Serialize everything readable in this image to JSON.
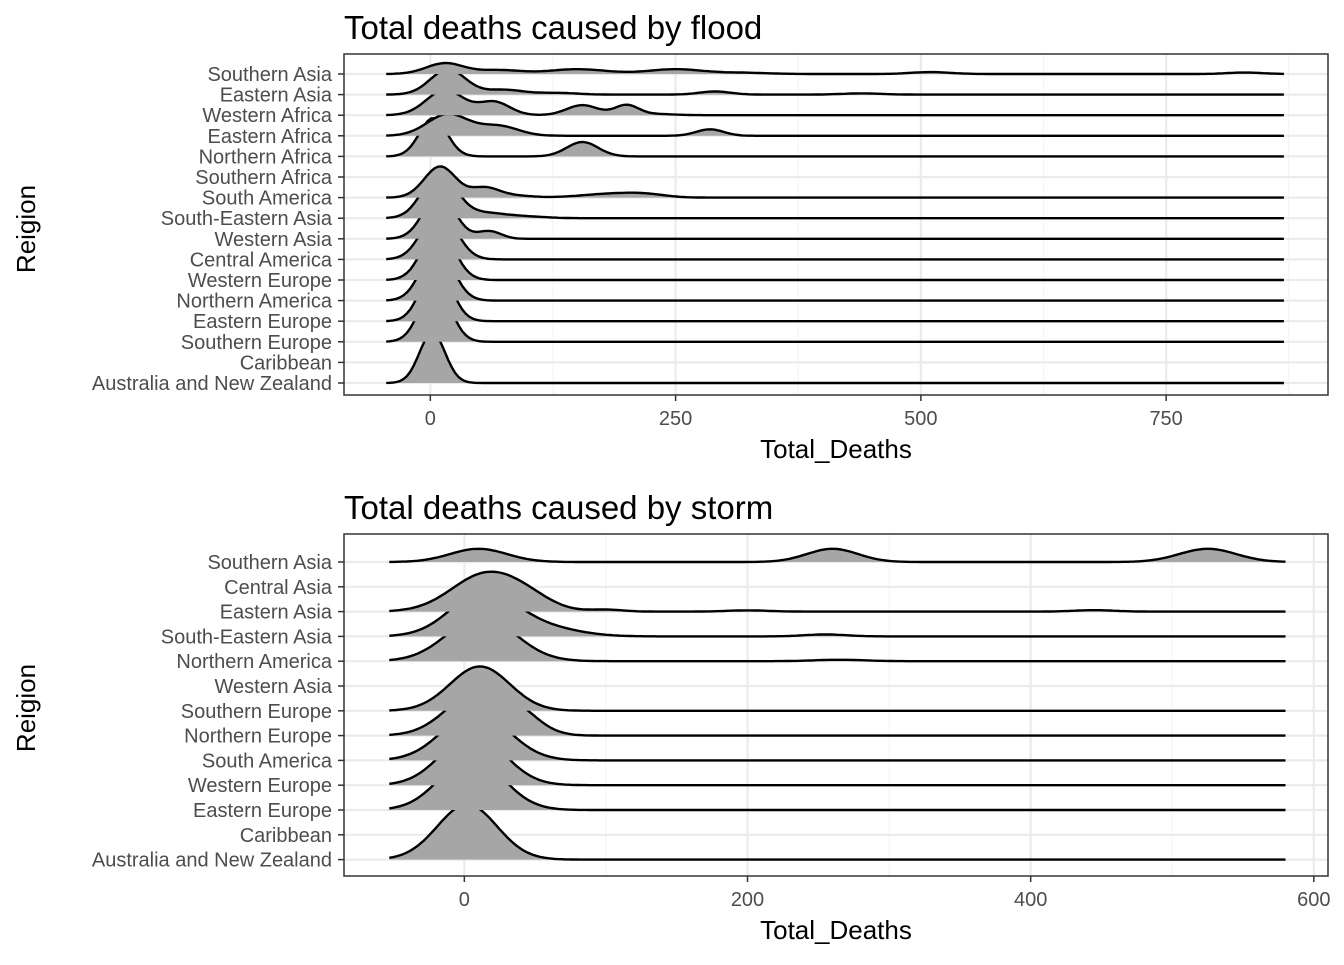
{
  "colors": {
    "fill": "#a6a6a6",
    "line": "#000000",
    "grid_major": "#ebebeb",
    "grid_minor": "#f5f5f5",
    "panel_border": "#333333",
    "tick_text": "#4d4d4d"
  },
  "chart_data": [
    {
      "type": "ridgeline",
      "title": "Total deaths caused by flood",
      "xlabel": "Total_Deaths",
      "ylabel": "Reigion",
      "xlim": [
        -88,
        915
      ],
      "xticks": [
        0,
        250,
        500,
        750
      ],
      "x_range": [
        -45,
        870
      ],
      "grid": true,
      "categories_top_to_bottom": [
        "Southern Asia",
        "Eastern Asia",
        "Western Africa",
        "Eastern Africa",
        "Northern Africa",
        "Southern Africa",
        "South America",
        "South-Eastern Asia",
        "Western Asia",
        "Central America",
        "Western Europe",
        "Northern America",
        "Eastern Europe",
        "Southern Europe",
        "Caribbean",
        "Australia and New Zealand"
      ],
      "series": [
        {
          "name": "Southern Asia",
          "peaks": [
            [
              15,
              0.45,
              19
            ],
            [
              70,
              0.16,
              22
            ],
            [
              150,
              0.2,
              30
            ],
            [
              250,
              0.2,
              28
            ],
            [
              320,
              0.05,
              25
            ],
            [
              510,
              0.08,
              20
            ],
            [
              830,
              0.06,
              18
            ]
          ]
        },
        {
          "name": "Eastern Asia",
          "peaks": [
            [
              18,
              1.05,
              18
            ],
            [
              75,
              0.2,
              20
            ],
            [
              130,
              0.07,
              20
            ],
            [
              290,
              0.13,
              16
            ],
            [
              440,
              0.05,
              20
            ]
          ]
        },
        {
          "name": "Western Africa",
          "peaks": [
            [
              15,
              1.05,
              19
            ],
            [
              65,
              0.55,
              16
            ],
            [
              155,
              0.42,
              16
            ],
            [
              200,
              0.42,
              12
            ],
            [
              230,
              0.05,
              18
            ]
          ]
        },
        {
          "name": "Eastern Africa",
          "peaks": [
            [
              18,
              0.9,
              21
            ],
            [
              70,
              0.4,
              20
            ],
            [
              285,
              0.27,
              14
            ]
          ]
        },
        {
          "name": "Northern Africa",
          "peaks": [
            [
              3,
              1.6,
              14
            ],
            [
              155,
              0.6,
              16
            ]
          ]
        },
        {
          "name": "Southern Africa",
          "peaks": []
        },
        {
          "name": "South America",
          "peaks": [
            [
              10,
              1.3,
              16
            ],
            [
              55,
              0.38,
              14
            ],
            [
              80,
              0.1,
              20
            ],
            [
              185,
              0.16,
              30
            ],
            [
              220,
              0.1,
              20
            ]
          ]
        },
        {
          "name": "South-Eastern Asia",
          "peaks": [
            [
              9,
              1.9,
              17
            ],
            [
              55,
              0.22,
              22
            ],
            [
              100,
              0.06,
              20
            ]
          ]
        },
        {
          "name": "Western Asia",
          "peaks": [
            [
              9,
              1.85,
              16
            ],
            [
              60,
              0.32,
              12
            ]
          ]
        },
        {
          "name": "Central America",
          "peaks": [
            [
              9,
              2.05,
              17
            ]
          ]
        },
        {
          "name": "Western Europe",
          "peaks": [
            [
              8,
              2.15,
              16
            ]
          ]
        },
        {
          "name": "Northern America",
          "peaks": [
            [
              7,
              2.2,
              16
            ]
          ]
        },
        {
          "name": "Eastern Europe",
          "peaks": [
            [
              6,
              2.35,
              15
            ]
          ]
        },
        {
          "name": "Southern Europe",
          "peaks": [
            [
              5,
              2.4,
              15
            ]
          ]
        },
        {
          "name": "Caribbean",
          "peaks": []
        },
        {
          "name": "Australia and New Zealand",
          "peaks": [
            [
              2,
              2.1,
              13
            ]
          ]
        }
      ]
    },
    {
      "type": "ridgeline",
      "title": "Total deaths caused by storm",
      "xlabel": "Total_Deaths",
      "ylabel": "Reigion",
      "xlim": [
        -85,
        610
      ],
      "xticks": [
        0,
        200,
        400,
        600
      ],
      "x_range": [
        -53,
        580
      ],
      "grid": true,
      "categories_top_to_bottom": [
        "Southern Asia",
        "Central Asia",
        "Eastern Asia",
        "South-Eastern Asia",
        "Northern America",
        "Western Asia",
        "Southern Europe",
        "Northern Europe",
        "South America",
        "Western Europe",
        "Eastern Europe",
        "Caribbean",
        "Australia and New Zealand"
      ],
      "series": [
        {
          "name": "Southern Asia",
          "peaks": [
            [
              10,
              0.55,
              20
            ],
            [
              260,
              0.55,
              18
            ],
            [
              525,
              0.55,
              20
            ]
          ]
        },
        {
          "name": "Central Asia",
          "peaks": []
        },
        {
          "name": "Eastern Asia",
          "peaks": [
            [
              15,
              1.55,
              24
            ],
            [
              45,
              0.38,
              18
            ],
            [
              100,
              0.08,
              12
            ],
            [
              200,
              0.05,
              15
            ],
            [
              445,
              0.06,
              14
            ]
          ]
        },
        {
          "name": "South-Eastern Asia",
          "peaks": [
            [
              13,
              1.8,
              23
            ],
            [
              55,
              0.35,
              25
            ],
            [
              255,
              0.08,
              15
            ]
          ]
        },
        {
          "name": "Northern America",
          "peaks": [
            [
              12,
              1.85,
              24
            ],
            [
              265,
              0.06,
              18
            ]
          ]
        },
        {
          "name": "Western Asia",
          "peaks": []
        },
        {
          "name": "Southern Europe",
          "peaks": [
            [
              11,
              1.85,
              21
            ]
          ]
        },
        {
          "name": "Northern Europe",
          "peaks": [
            [
              10,
              1.85,
              22
            ],
            [
              40,
              0.55,
              15
            ]
          ]
        },
        {
          "name": "South America",
          "peaks": [
            [
              8,
              2.05,
              23
            ]
          ]
        },
        {
          "name": "Western Europe",
          "peaks": [
            [
              6,
              2.15,
              22
            ]
          ]
        },
        {
          "name": "Eastern Europe",
          "peaks": [
            [
              5,
              2.2,
              22
            ]
          ]
        },
        {
          "name": "Caribbean",
          "peaks": []
        },
        {
          "name": "Australia and New Zealand",
          "peaks": [
            [
              2,
              2.3,
              21
            ]
          ]
        }
      ]
    }
  ]
}
